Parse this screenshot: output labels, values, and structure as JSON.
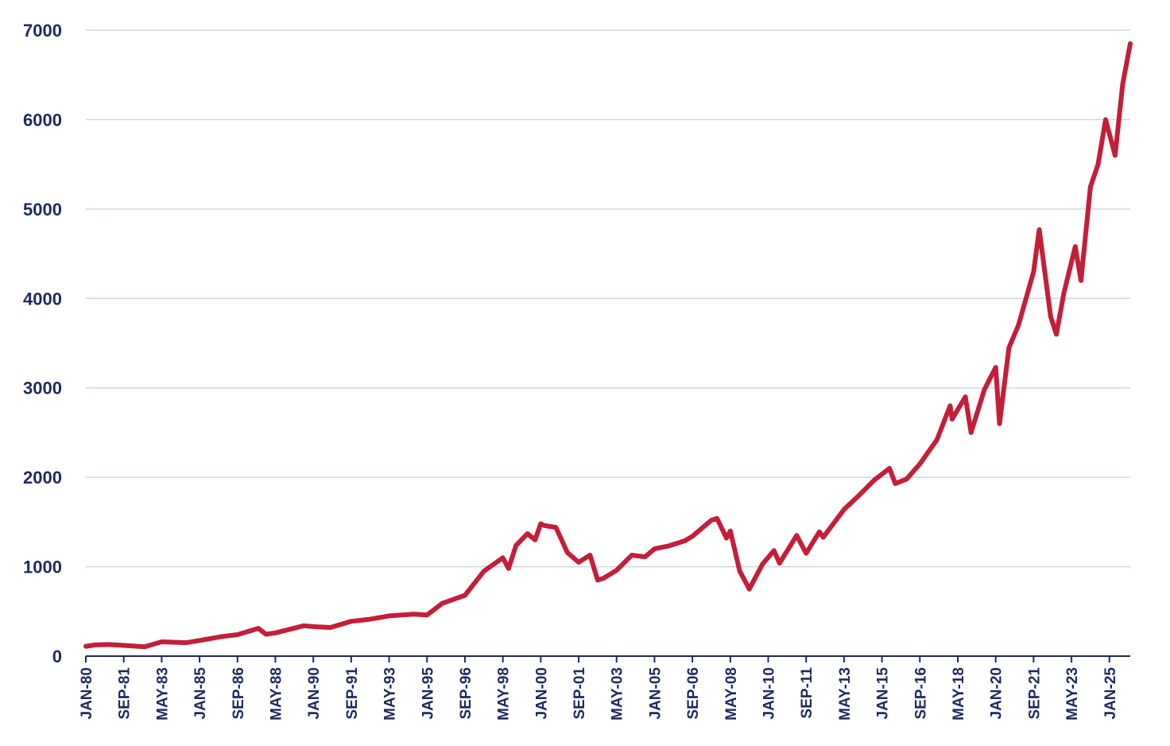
{
  "chart_data": {
    "type": "line",
    "title": "",
    "xlabel": "",
    "ylabel": "",
    "ylim": [
      0,
      7000
    ],
    "yticks": [
      0,
      1000,
      2000,
      3000,
      4000,
      5000,
      6000,
      7000
    ],
    "xlim": [
      "1980-01",
      "2025-12"
    ],
    "xticks": [
      "JAN-80",
      "SEP-81",
      "MAY-83",
      "JAN-85",
      "SEP-86",
      "MAY-88",
      "JAN-90",
      "SEP-91",
      "MAY-93",
      "JAN-95",
      "SEP-96",
      "MAY-98",
      "JAN-00",
      "SEP-01",
      "MAY-03",
      "JAN-05",
      "SEP-06",
      "MAY-08",
      "JAN-10",
      "SEP-11",
      "MAY-13",
      "JAN-15",
      "SEP-16",
      "MAY-18",
      "JAN-20",
      "SEP-21",
      "MAY-23",
      "JAN-25"
    ],
    "grid": true,
    "legend": "none",
    "colors": {
      "line": "#c41e3a",
      "text": "#1f2a5c",
      "grid": "#cfd6e6"
    },
    "series": [
      {
        "x": [
          "1980-01",
          "1980-06",
          "1981-01",
          "1981-09",
          "1982-08",
          "1983-05",
          "1984-06",
          "1985-01",
          "1986-01",
          "1986-09",
          "1987-08",
          "1987-12",
          "1988-05",
          "1989-08",
          "1990-01",
          "1990-10",
          "1991-09",
          "1992-06",
          "1993-05",
          "1994-06",
          "1995-01",
          "1995-09",
          "1996-09",
          "1997-07",
          "1998-05",
          "1998-08",
          "1998-12",
          "1999-06",
          "1999-10",
          "2000-01",
          "2000-03",
          "2000-09",
          "2001-03",
          "2001-09",
          "2002-03",
          "2002-07",
          "2002-10",
          "2003-05",
          "2004-01",
          "2004-08",
          "2005-01",
          "2005-08",
          "2006-05",
          "2006-09",
          "2007-07",
          "2007-10",
          "2008-03",
          "2008-05",
          "2008-10",
          "2009-03",
          "2009-10",
          "2010-04",
          "2010-07",
          "2011-04",
          "2011-09",
          "2012-04",
          "2012-06",
          "2013-05",
          "2014-01",
          "2014-09",
          "2015-05",
          "2015-08",
          "2016-02",
          "2016-09",
          "2017-06",
          "2018-01",
          "2018-02",
          "2018-09",
          "2018-12",
          "2019-07",
          "2020-01",
          "2020-03",
          "2020-08",
          "2021-01",
          "2021-09",
          "2021-12",
          "2022-06",
          "2022-09",
          "2023-01",
          "2023-07",
          "2023-10",
          "2024-03",
          "2024-07",
          "2024-11",
          "2025-04",
          "2025-08",
          "2025-12"
        ],
        "y": [
          110,
          125,
          130,
          120,
          105,
          160,
          150,
          175,
          220,
          240,
          310,
          245,
          260,
          340,
          330,
          320,
          390,
          410,
          450,
          470,
          460,
          590,
          680,
          950,
          1100,
          980,
          1240,
          1370,
          1300,
          1480,
          1460,
          1440,
          1160,
          1050,
          1130,
          850,
          870,
          960,
          1130,
          1110,
          1200,
          1230,
          1290,
          1340,
          1520,
          1540,
          1320,
          1400,
          950,
          750,
          1030,
          1180,
          1040,
          1350,
          1150,
          1390,
          1330,
          1640,
          1800,
          1970,
          2100,
          1930,
          1980,
          2150,
          2420,
          2800,
          2650,
          2900,
          2500,
          2980,
          3230,
          2600,
          3450,
          3700,
          4300,
          4770,
          3800,
          3600,
          4060,
          4580,
          4200,
          5250,
          5500,
          6000,
          5600,
          6400,
          6850
        ]
      }
    ]
  }
}
